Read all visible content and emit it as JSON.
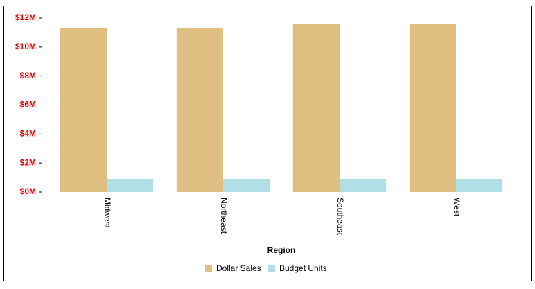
{
  "chart_data": {
    "type": "bar",
    "x_label": "Region",
    "categories": [
      "Midwest",
      "Northeast",
      "Southeast",
      "West"
    ],
    "series": [
      {
        "name": "Dollar Sales",
        "color": "#dfbe82",
        "values": [
          11330000,
          11280000,
          11620000,
          11570000
        ]
      },
      {
        "name": "Budget Units",
        "color": "#b0dfe5",
        "values": [
          860000,
          860000,
          910000,
          860000
        ]
      }
    ],
    "ylim": [
      0,
      12000000
    ],
    "yticks": [
      {
        "value": 0,
        "label": "$0M"
      },
      {
        "value": 2000000,
        "label": "$2M"
      },
      {
        "value": 4000000,
        "label": "$4M"
      },
      {
        "value": 6000000,
        "label": "$6M"
      },
      {
        "value": 8000000,
        "label": "$8M"
      },
      {
        "value": 10000000,
        "label": "$10M"
      },
      {
        "value": 12000000,
        "label": "$12M"
      }
    ],
    "tick_label_color": "#e00000",
    "grid": false
  }
}
